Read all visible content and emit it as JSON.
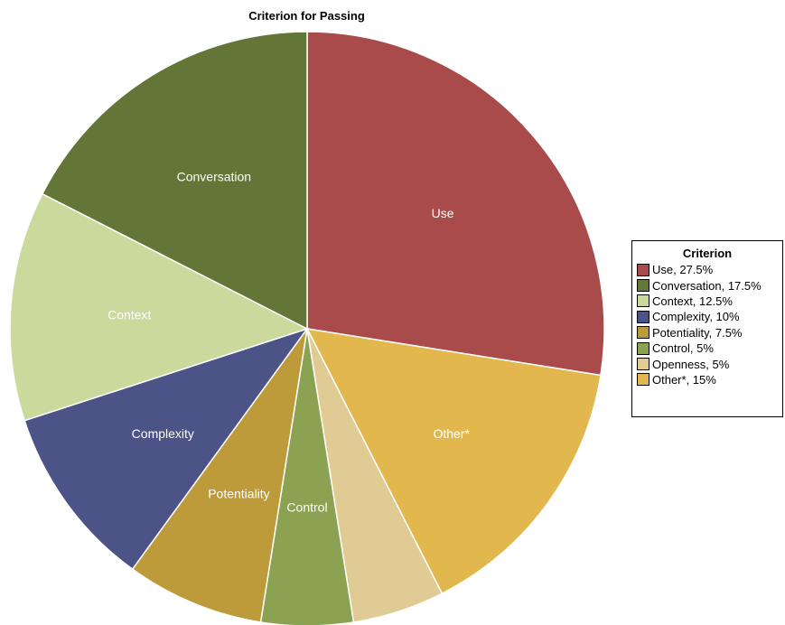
{
  "chart_data": {
    "type": "pie",
    "title": "Criterion for Passing",
    "legend_title": "Criterion",
    "legend_position": "right",
    "slices": [
      {
        "name": "Use",
        "value": 27.5,
        "color": "#a94b4b",
        "slice_label": "Use",
        "legend_label": "Use, 27.5%"
      },
      {
        "name": "Other*",
        "value": 15,
        "color": "#e2b84e",
        "slice_label": "Other*",
        "legend_label": "Other*, 15%"
      },
      {
        "name": "Openness",
        "value": 5,
        "color": "#e1cb94",
        "slice_label": "",
        "legend_label": "Openness, 5%"
      },
      {
        "name": "Control",
        "value": 5,
        "color": "#8ca253",
        "slice_label": "Control",
        "legend_label": "Control, 5%"
      },
      {
        "name": "Potentiality",
        "value": 7.5,
        "color": "#bd9b3a",
        "slice_label": "Potentiality",
        "legend_label": "Potentiality, 7.5%"
      },
      {
        "name": "Complexity",
        "value": 10,
        "color": "#4c5386",
        "slice_label": "Complexity",
        "legend_label": "Complexity, 10%"
      },
      {
        "name": "Context",
        "value": 12.5,
        "color": "#cbd99c",
        "slice_label": "Context",
        "legend_label": "Context, 12.5%"
      },
      {
        "name": "Conversation",
        "value": 17.5,
        "color": "#647538",
        "slice_label": "Conversation",
        "legend_label": "Conversation, 17.5%"
      }
    ],
    "legend_order": [
      "Use",
      "Conversation",
      "Context",
      "Complexity",
      "Potentiality",
      "Control",
      "Openness",
      "Other*"
    ]
  }
}
